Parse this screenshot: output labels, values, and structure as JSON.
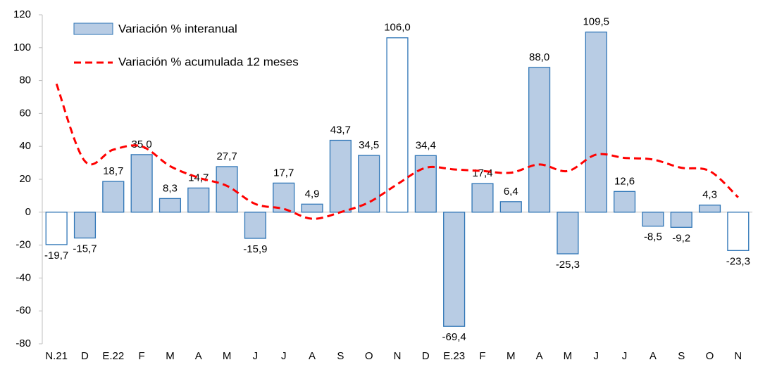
{
  "chart_data": {
    "type": "bar",
    "categories": [
      "N.21",
      "D",
      "E.22",
      "F",
      "M",
      "A",
      "M",
      "J",
      "J",
      "A",
      "S",
      "O",
      "N",
      "D",
      "E.23",
      "F",
      "M",
      "A",
      "M",
      "J",
      "J",
      "A",
      "S",
      "O",
      "N"
    ],
    "series": [
      {
        "name": "Variación % interanual",
        "type": "bar",
        "color": "#b8cce4",
        "edgecolor": "#2e75b6",
        "colors": [
          "#ffffff",
          "#b8cce4",
          "#b8cce4",
          "#b8cce4",
          "#b8cce4",
          "#b8cce4",
          "#b8cce4",
          "#b8cce4",
          "#b8cce4",
          "#b8cce4",
          "#b8cce4",
          "#b8cce4",
          "#ffffff",
          "#b8cce4",
          "#b8cce4",
          "#b8cce4",
          "#b8cce4",
          "#b8cce4",
          "#b8cce4",
          "#b8cce4",
          "#b8cce4",
          "#b8cce4",
          "#b8cce4",
          "#b8cce4",
          "#ffffff"
        ],
        "values": [
          -19.7,
          -15.7,
          18.7,
          35.0,
          8.3,
          14.7,
          27.7,
          -15.9,
          17.7,
          4.9,
          43.7,
          34.5,
          106.0,
          34.4,
          -69.4,
          17.4,
          6.4,
          88.0,
          -25.3,
          109.5,
          12.6,
          -8.5,
          -9.2,
          4.3,
          -23.3
        ],
        "value_labels": [
          "-19,7",
          "-15,7",
          "18,7",
          "35,0",
          "8,3",
          "14,7",
          "27,7",
          "-15,9",
          "17,7",
          "4,9",
          "43,7",
          "34,5",
          "106,0",
          "34,4",
          "-69,4",
          "17,4",
          "6,4",
          "88,0",
          "-25,3",
          "109,5",
          "12,6",
          "-8,5",
          "-9,2",
          "4,3",
          "-23,3"
        ]
      },
      {
        "name": "Variación % acumulada 12 meses",
        "type": "line",
        "color": "#ff0000",
        "linestyle": "dashed",
        "values": [
          78,
          31,
          38,
          40,
          28,
          21,
          16,
          5,
          2,
          -4,
          0,
          6,
          17,
          27,
          26,
          25,
          24,
          29,
          25,
          35,
          33,
          32,
          27,
          25,
          9
        ]
      }
    ],
    "ylim": [
      -80,
      120
    ],
    "yticks": [
      -80,
      -60,
      -40,
      -20,
      0,
      20,
      40,
      60,
      80,
      100,
      120
    ],
    "grid": false
  }
}
